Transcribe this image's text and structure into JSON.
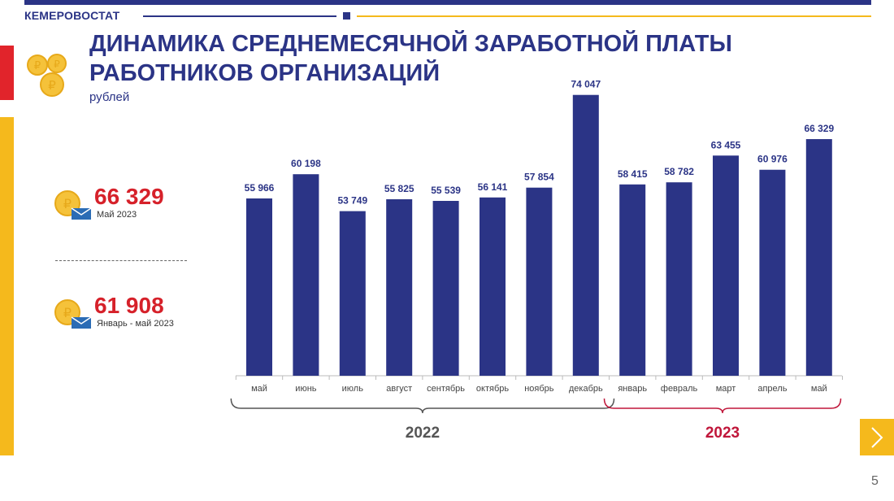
{
  "header": {
    "brand": "КЕМЕРОВОСТАТ"
  },
  "title_line1": "ДИНАМИКА СРЕДНЕМЕСЯЧНОЙ ЗАРАБОТНОЙ ПЛАТЫ",
  "title_line2": "РАБОТНИКОВ ОРГАНИЗАЦИЙ",
  "unit": "рублей",
  "kpis": [
    {
      "value": "66 329",
      "label": "Май 2023"
    },
    {
      "value": "61 908",
      "label": "Январь - май 2023"
    }
  ],
  "chart_data": {
    "type": "bar",
    "title": "ДИНАМИКА СРЕДНЕМЕСЯЧНОЙ ЗАРАБОТНОЙ ПЛАТЫ РАБОТНИКОВ ОРГАНИЗАЦИЙ",
    "ylabel": "рублей",
    "categories": [
      "май",
      "июнь",
      "июль",
      "август",
      "сентябрь",
      "октябрь",
      "ноябрь",
      "декабрь",
      "январь",
      "февраль",
      "март",
      "апрель",
      "май"
    ],
    "values": [
      55966,
      60198,
      53749,
      55825,
      55539,
      56141,
      57854,
      74047,
      58415,
      58782,
      63455,
      60976,
      66329
    ],
    "value_labels": [
      "55 966",
      "60 198",
      "53 749",
      "55 825",
      "55 539",
      "56 141",
      "57 854",
      "74 047",
      "58 415",
      "58 782",
      "63 455",
      "60 976",
      "66 329"
    ],
    "groups": [
      {
        "label": "2022",
        "from": 0,
        "to": 7,
        "color": "#555555"
      },
      {
        "label": "2023",
        "from": 8,
        "to": 12,
        "color": "#c0163a"
      }
    ],
    "ylim": [
      25000,
      75000
    ],
    "grid": false,
    "bar_color": "#2b3486"
  },
  "nav": {
    "next_icon": "chevron-right-icon"
  },
  "page_number": "5",
  "colors": {
    "accent_blue": "#2b3486",
    "accent_red": "#d6212a",
    "accent_yellow": "#f5b91c"
  }
}
